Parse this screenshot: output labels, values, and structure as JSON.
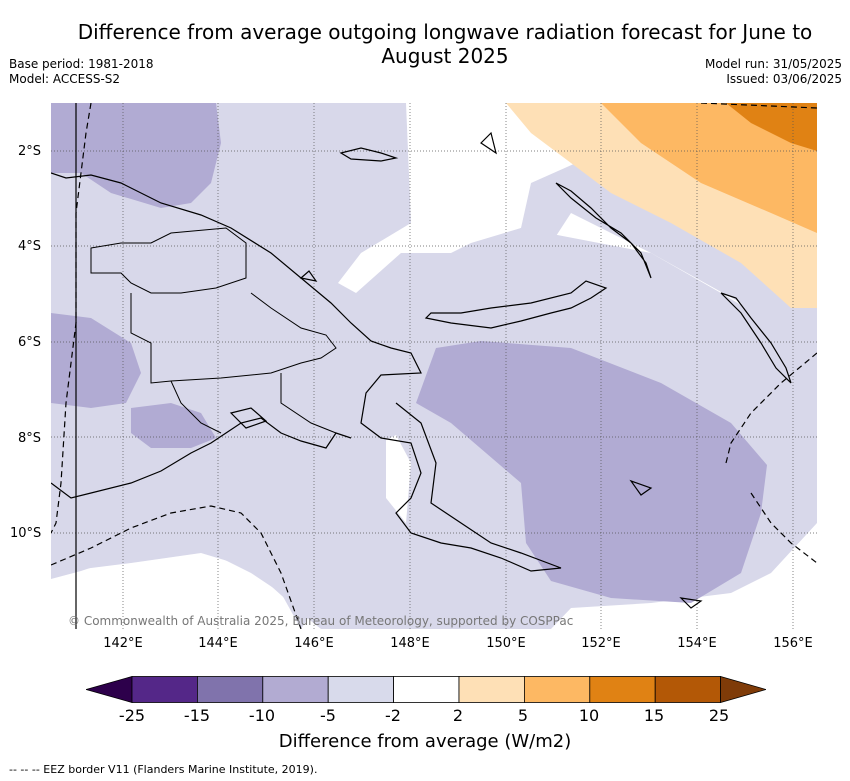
{
  "title": "Difference from average outgoing longwave radiation forecast for June to August 2025",
  "meta": {
    "base_period": "Base period: 1981-2018",
    "model": "Model: ACCESS-S2",
    "model_run": "Model run: 31/05/2025",
    "issued": "Issued: 03/06/2025"
  },
  "map": {
    "copyright": "© Commonwealth of Australia 2025, Bureau of Meteorology, supported by COSPPac",
    "lat_labels": [
      "2°S",
      "4°S",
      "6°S",
      "8°S",
      "10°S"
    ],
    "lon_labels": [
      "142°E",
      "144°E",
      "146°E",
      "148°E",
      "150°E",
      "152°E",
      "154°E",
      "156°E"
    ],
    "colors": {
      "lt_minus10": "#b1abd3",
      "minus5_to_minus2": "#d8d8ea",
      "neutral": "#ffffff",
      "plus2_to_5": "#fee0b6",
      "plus5_to_10": "#fdb863",
      "plus10_to_15": "#e08214"
    }
  },
  "colorbar": {
    "title": "Difference from average (W/m2)",
    "tick_labels": [
      "-25",
      "-15",
      "-10",
      "-5",
      "-2",
      "2",
      "5",
      "10",
      "15",
      "25"
    ],
    "colors": [
      "#2d004b",
      "#542788",
      "#8073ac",
      "#b2abd2",
      "#d8daeb",
      "#ffffff",
      "#fee0b6",
      "#fdb863",
      "#e08214",
      "#b35806",
      "#7f3b08"
    ]
  },
  "footnote": "-- -- -- EEZ border V11 (Flanders Marine Institute, 2019)."
}
